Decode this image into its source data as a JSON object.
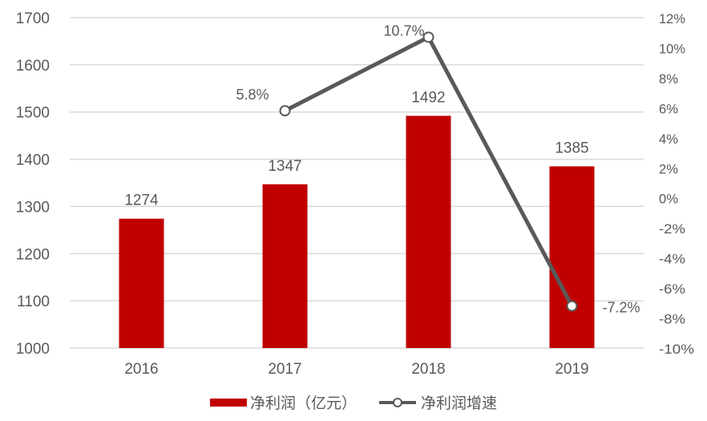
{
  "chart_data": {
    "type": "bar+line",
    "title": "",
    "categories": [
      "2016",
      "2017",
      "2018",
      "2019"
    ],
    "series": [
      {
        "name": "净利润（亿元）",
        "type": "bar",
        "axis": "left",
        "values": [
          1274,
          1347,
          1492,
          1385
        ],
        "labels": [
          "1274",
          "1347",
          "1492",
          "1385"
        ],
        "color": "#c00000"
      },
      {
        "name": "净利润增速",
        "type": "line",
        "axis": "right",
        "values": [
          null,
          5.8,
          10.7,
          -7.2
        ],
        "labels": [
          "",
          "5.8%",
          "10.7%",
          "-7.2%"
        ],
        "color": "#595959",
        "marker": "open-circle"
      }
    ],
    "left_axis": {
      "min": 1000,
      "max": 1700,
      "step": 100,
      "ticks": [
        "1700",
        "1600",
        "1500",
        "1400",
        "1300",
        "1200",
        "1100",
        "1000"
      ]
    },
    "right_axis": {
      "min": -10,
      "max": 12,
      "step": 2,
      "ticks": [
        "12%",
        "10%",
        "8%",
        "6%",
        "4%",
        "2%",
        "0%",
        "-2%",
        "-4%",
        "-6%",
        "-8%",
        "-10%"
      ]
    },
    "grid": true,
    "legend_position": "bottom"
  },
  "legend": {
    "bar_label": "净利润（亿元）",
    "line_label": "净利润增速"
  },
  "colors": {
    "bar": "#c00000",
    "line": "#595959",
    "grid": "#d9d9d9",
    "text": "#595959"
  }
}
